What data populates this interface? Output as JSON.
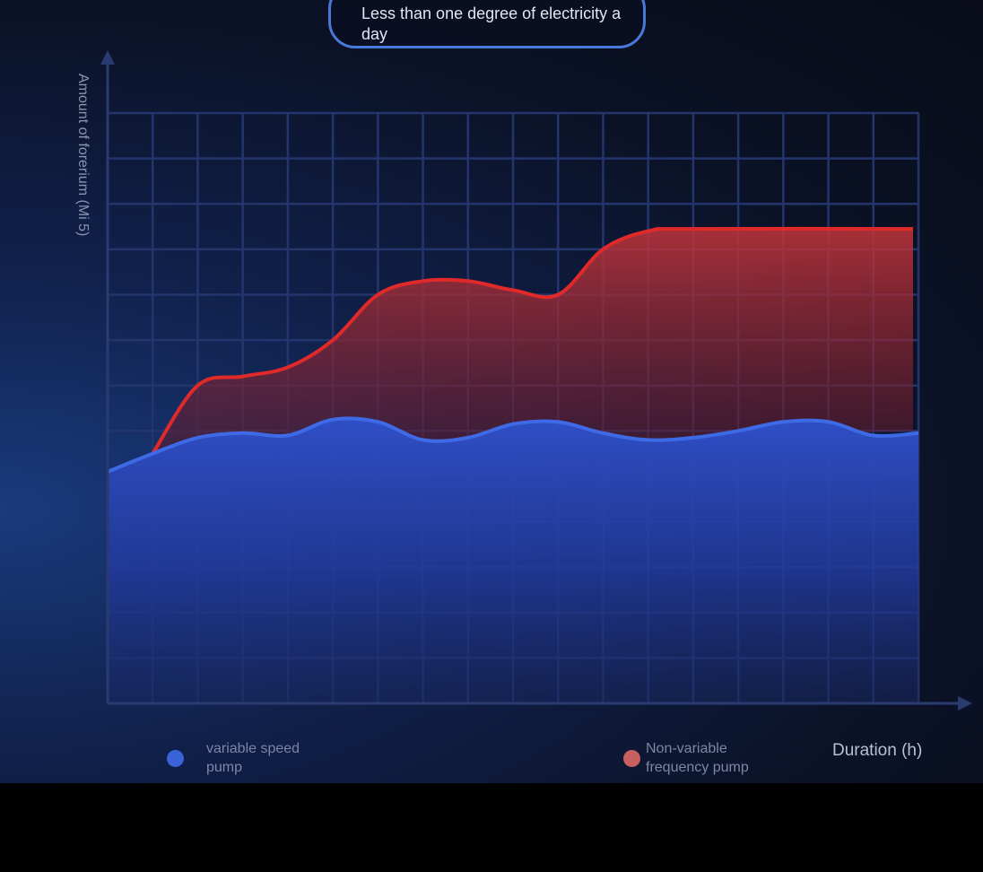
{
  "chart_data": {
    "type": "area",
    "title": "Less than one degree of electricity a day",
    "ylabel": "Amount of forerium (Mi 5)",
    "xlabel": "Duration (h)",
    "x": [
      0,
      0.5,
      1,
      1.5,
      2,
      2.5,
      3,
      3.5,
      4,
      4.5,
      5,
      5.5,
      6,
      6.5,
      7,
      7.5,
      8,
      8.5,
      9
    ],
    "ylim": [
      0,
      13
    ],
    "xlim": [
      0,
      9
    ],
    "grid": true,
    "legend_position": "bottom",
    "series": [
      {
        "name": "variable speed pump",
        "color": "#3b63d9",
        "values": [
          5.1,
          5.5,
          5.85,
          5.95,
          5.9,
          6.25,
          6.2,
          5.8,
          5.85,
          6.15,
          6.2,
          5.95,
          5.8,
          5.85,
          6.0,
          6.2,
          6.2,
          5.9,
          5.95
        ]
      },
      {
        "name": "Non-variable frequency pump",
        "color": "#e02a2a",
        "values": [
          null,
          5.5,
          7.0,
          7.2,
          7.4,
          8.0,
          9.0,
          9.3,
          9.3,
          9.1,
          9.0,
          10.0,
          10.4,
          10.45,
          null,
          null,
          null,
          null,
          null
        ]
      }
    ]
  },
  "legend": {
    "blue_label": "variable speed pump",
    "red_label": "Non-variable frequency pump"
  }
}
